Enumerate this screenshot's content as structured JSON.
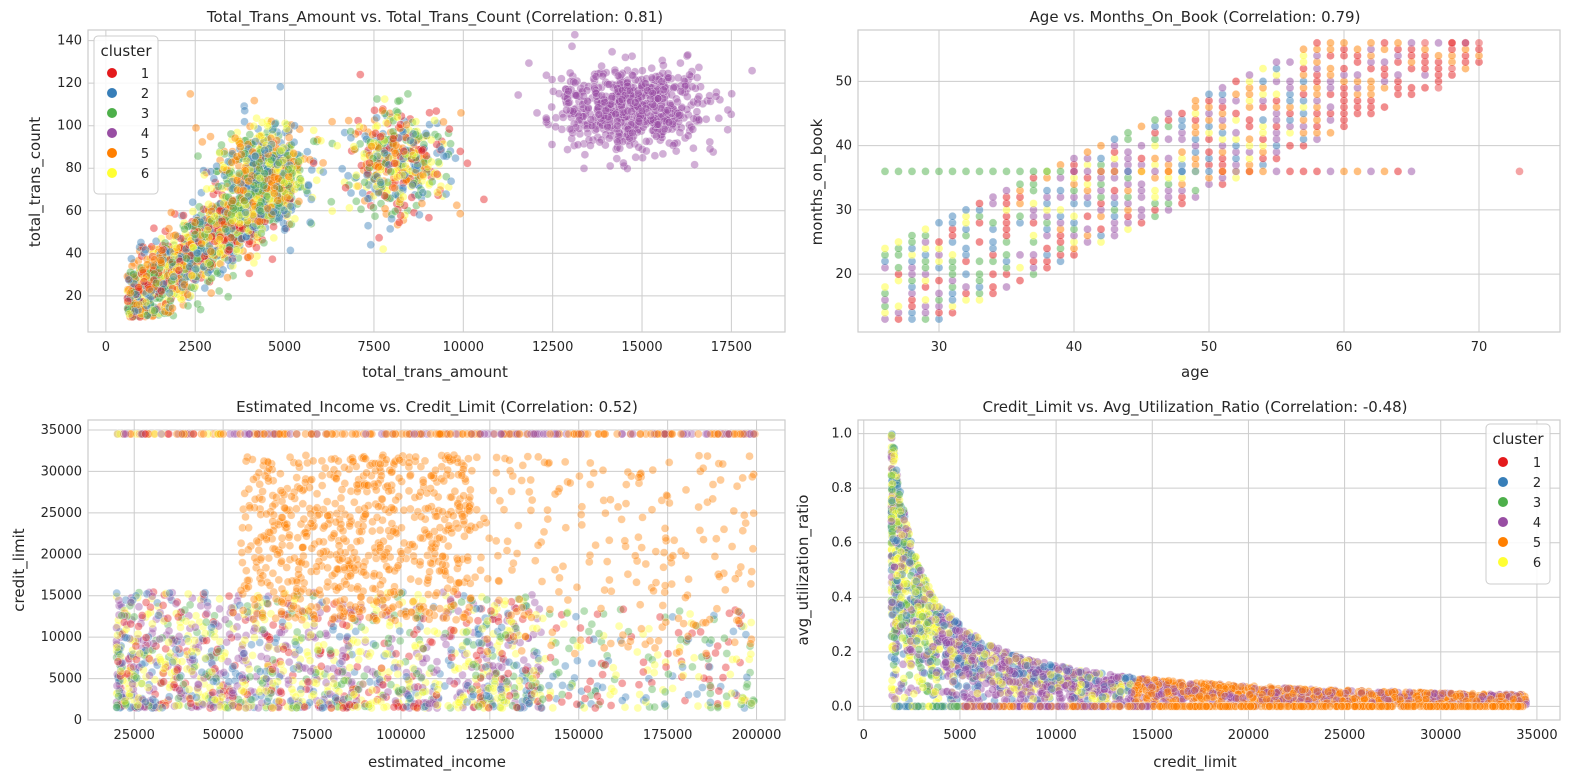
{
  "colors": {
    "cluster_1": "#e41a1c",
    "cluster_2": "#377eb8",
    "cluster_3": "#4daf4a",
    "cluster_4": "#984ea3",
    "cluster_5": "#ff7f00",
    "cluster_6": "#ffff33",
    "grid": "#cccccc",
    "plot_background": "#ffffff",
    "spine": "#cccccc"
  },
  "legend": {
    "title": "cluster",
    "entries": [
      "1",
      "2",
      "3",
      "4",
      "5",
      "6"
    ]
  },
  "chart_data": [
    {
      "type": "scatter",
      "title": "Total_Trans_Amount vs. Total_Trans_Count (Correlation: 0.81)",
      "xlabel": "total_trans_amount",
      "ylabel": "total_trans_count",
      "xlim": [
        -500,
        19000
      ],
      "ylim": [
        3,
        145
      ],
      "xticks": [
        0,
        2500,
        5000,
        7500,
        10000,
        12500,
        15000,
        17500
      ],
      "yticks": [
        20,
        40,
        60,
        80,
        100,
        120,
        140
      ],
      "grid": true,
      "legend": "top-left",
      "point_alpha": 0.45,
      "clusters": [
        {
          "series": [
            "1",
            "2",
            "3",
            "5",
            "6"
          ],
          "x_center": 2500,
          "x_spread": 1300,
          "y_center": 55,
          "y_spread": 22,
          "shape": "rising",
          "count": 1500
        },
        {
          "series": [
            "2",
            "3",
            "5",
            "6"
          ],
          "x_center": 4400,
          "x_spread": 700,
          "y_center": 78,
          "y_spread": 12,
          "count": 500
        },
        {
          "series": [
            "1",
            "2",
            "3",
            "5",
            "6"
          ],
          "x_center": 8200,
          "x_spread": 700,
          "y_center": 82,
          "y_spread": 13,
          "count": 450
        },
        {
          "series": [
            "4"
          ],
          "x_center": 14700,
          "x_spread": 1100,
          "y_center": 108,
          "y_spread": 10,
          "count": 650
        }
      ]
    },
    {
      "type": "scatter",
      "title": "Age vs. Months_On_Book (Correlation: 0.79)",
      "xlabel": "age",
      "ylabel": "months_on_book",
      "xlim": [
        24,
        76
      ],
      "ylim": [
        11,
        58
      ],
      "xticks": [
        30,
        40,
        50,
        60,
        70
      ],
      "yticks": [
        20,
        30,
        40,
        50
      ],
      "grid": true,
      "legend": "none",
      "point_alpha": 0.5,
      "grid_points": {
        "age_range": [
          26,
          73
        ],
        "months_range": [
          13,
          56
        ],
        "relationship": "months roughly equals age minus 8 ± 8",
        "plateau_at": 36
      }
    },
    {
      "type": "scatter",
      "title": "Estimated_Income vs. Credit_Limit (Correlation: 0.52)",
      "xlabel": "estimated_income",
      "ylabel": "credit_limit",
      "xlim": [
        12000,
        208000
      ],
      "ylim": [
        0,
        36200
      ],
      "xticks": [
        25000,
        50000,
        75000,
        100000,
        125000,
        150000,
        175000,
        200000
      ],
      "yticks": [
        0,
        5000,
        10000,
        15000,
        20000,
        25000,
        30000,
        35000
      ],
      "grid": true,
      "legend": "none",
      "point_alpha": 0.4,
      "income_range": [
        20000,
        200000
      ],
      "credit_limit_range": [
        1438,
        34516
      ],
      "ceiling_value": 34516
    },
    {
      "type": "scatter",
      "title": "Credit_Limit vs. Avg_Utilization_Ratio (Correlation: -0.48)",
      "xlabel": "credit_limit",
      "ylabel": "avg_utilization_ratio",
      "xlim": [
        -300,
        36200
      ],
      "ylim": [
        -0.05,
        1.05
      ],
      "xticks": [
        0,
        5000,
        10000,
        15000,
        20000,
        25000,
        30000,
        35000
      ],
      "yticks": [
        0.0,
        0.2,
        0.4,
        0.6,
        0.8,
        1.0
      ],
      "grid": true,
      "legend": "top-right",
      "point_alpha": 0.45,
      "credit_limit_range": [
        1438,
        34516
      ],
      "utilization_range": [
        0,
        1
      ],
      "relationship": "utilization bounded above by about 1500 divided by credit_limit"
    }
  ]
}
